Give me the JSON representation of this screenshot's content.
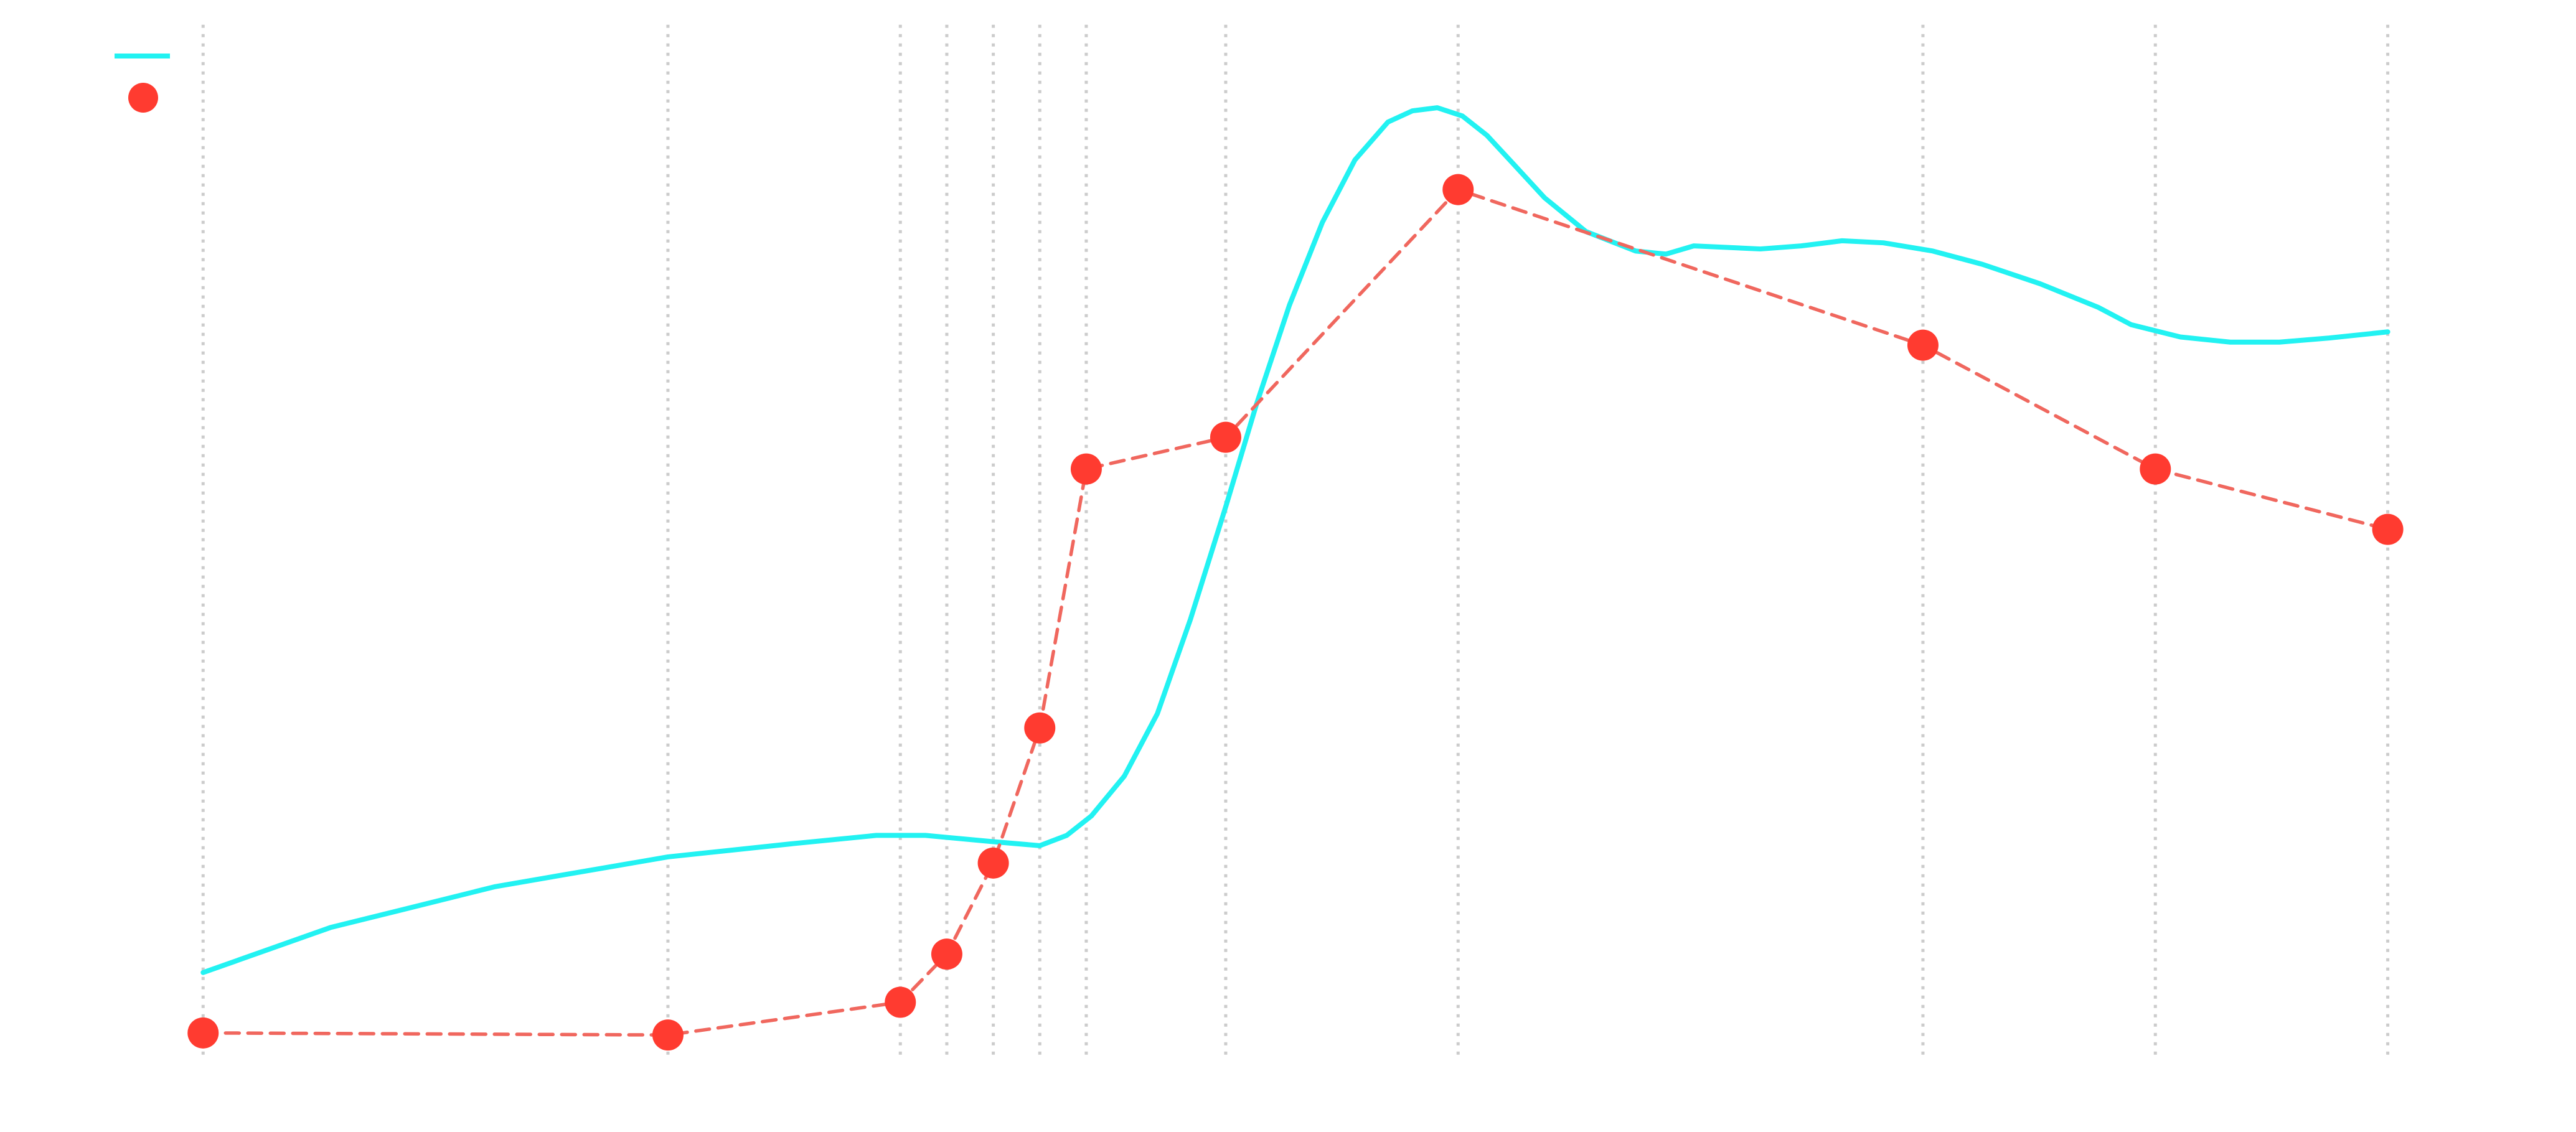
{
  "chart_data": {
    "type": "line",
    "xlim": [
      0,
      47
    ],
    "ylim": [
      0,
      100
    ],
    "xticks": [
      0,
      10,
      15,
      16,
      17,
      18,
      19,
      22,
      27,
      37,
      42,
      47
    ],
    "grid": true,
    "series": [
      {
        "color": "#22f2f2",
        "style": "solid",
        "markers": false,
        "x": [
          0,
          2.74,
          6.29,
          10,
          12.7,
          14.48,
          15.54,
          16.96,
          18,
          18.58,
          19.11,
          19.82,
          20.53,
          21.24,
          22.02,
          22.66,
          23.37,
          24.08,
          24.78,
          25.49,
          26.02,
          26.55,
          27.09,
          27.62,
          28.15,
          28.86,
          29.75,
          30.82,
          31.47,
          32.07,
          33.5,
          34.38,
          35.26,
          36.15,
          37.21,
          38.28,
          39.52,
          40.77,
          41.48,
          42.54,
          43.61,
          44.67,
          45.74,
          47
        ],
        "values": [
          8.2,
          12.6,
          16.6,
          19.5,
          20.8,
          21.6,
          21.6,
          21,
          20.6,
          21.6,
          23.5,
          27.4,
          33.5,
          42.7,
          54,
          63.7,
          73.4,
          81.5,
          87.6,
          91.3,
          92.4,
          92.7,
          91.9,
          90,
          87.4,
          83.9,
          80.6,
          78.7,
          78.4,
          79.2,
          78.9,
          79.2,
          79.7,
          79.5,
          78.7,
          77.4,
          75.5,
          73.2,
          71.5,
          70.3,
          69.8,
          69.8,
          70.2,
          70.8
        ]
      },
      {
        "color": "#ff3b30",
        "style": "dashed",
        "markers": true,
        "x": [
          0,
          10,
          15,
          16,
          17,
          18,
          19,
          22,
          27,
          37,
          42,
          47
        ],
        "values": [
          2.3,
          2.1,
          5.3,
          10,
          18.9,
          32.1,
          57.4,
          60.5,
          84.7,
          69.5,
          57.4,
          51.5
        ]
      }
    ]
  }
}
